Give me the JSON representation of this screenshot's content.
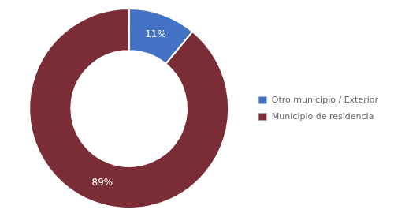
{
  "chart_data": {
    "type": "doughnut",
    "categories": [
      "Otro municipio / Exterior",
      "Municipio de residencia"
    ],
    "values": [
      11,
      89
    ],
    "value_labels": [
      "11%",
      "89%"
    ],
    "data_labels": true,
    "colors": [
      "#4472c4",
      "#7b2d35"
    ],
    "legend": "right"
  }
}
